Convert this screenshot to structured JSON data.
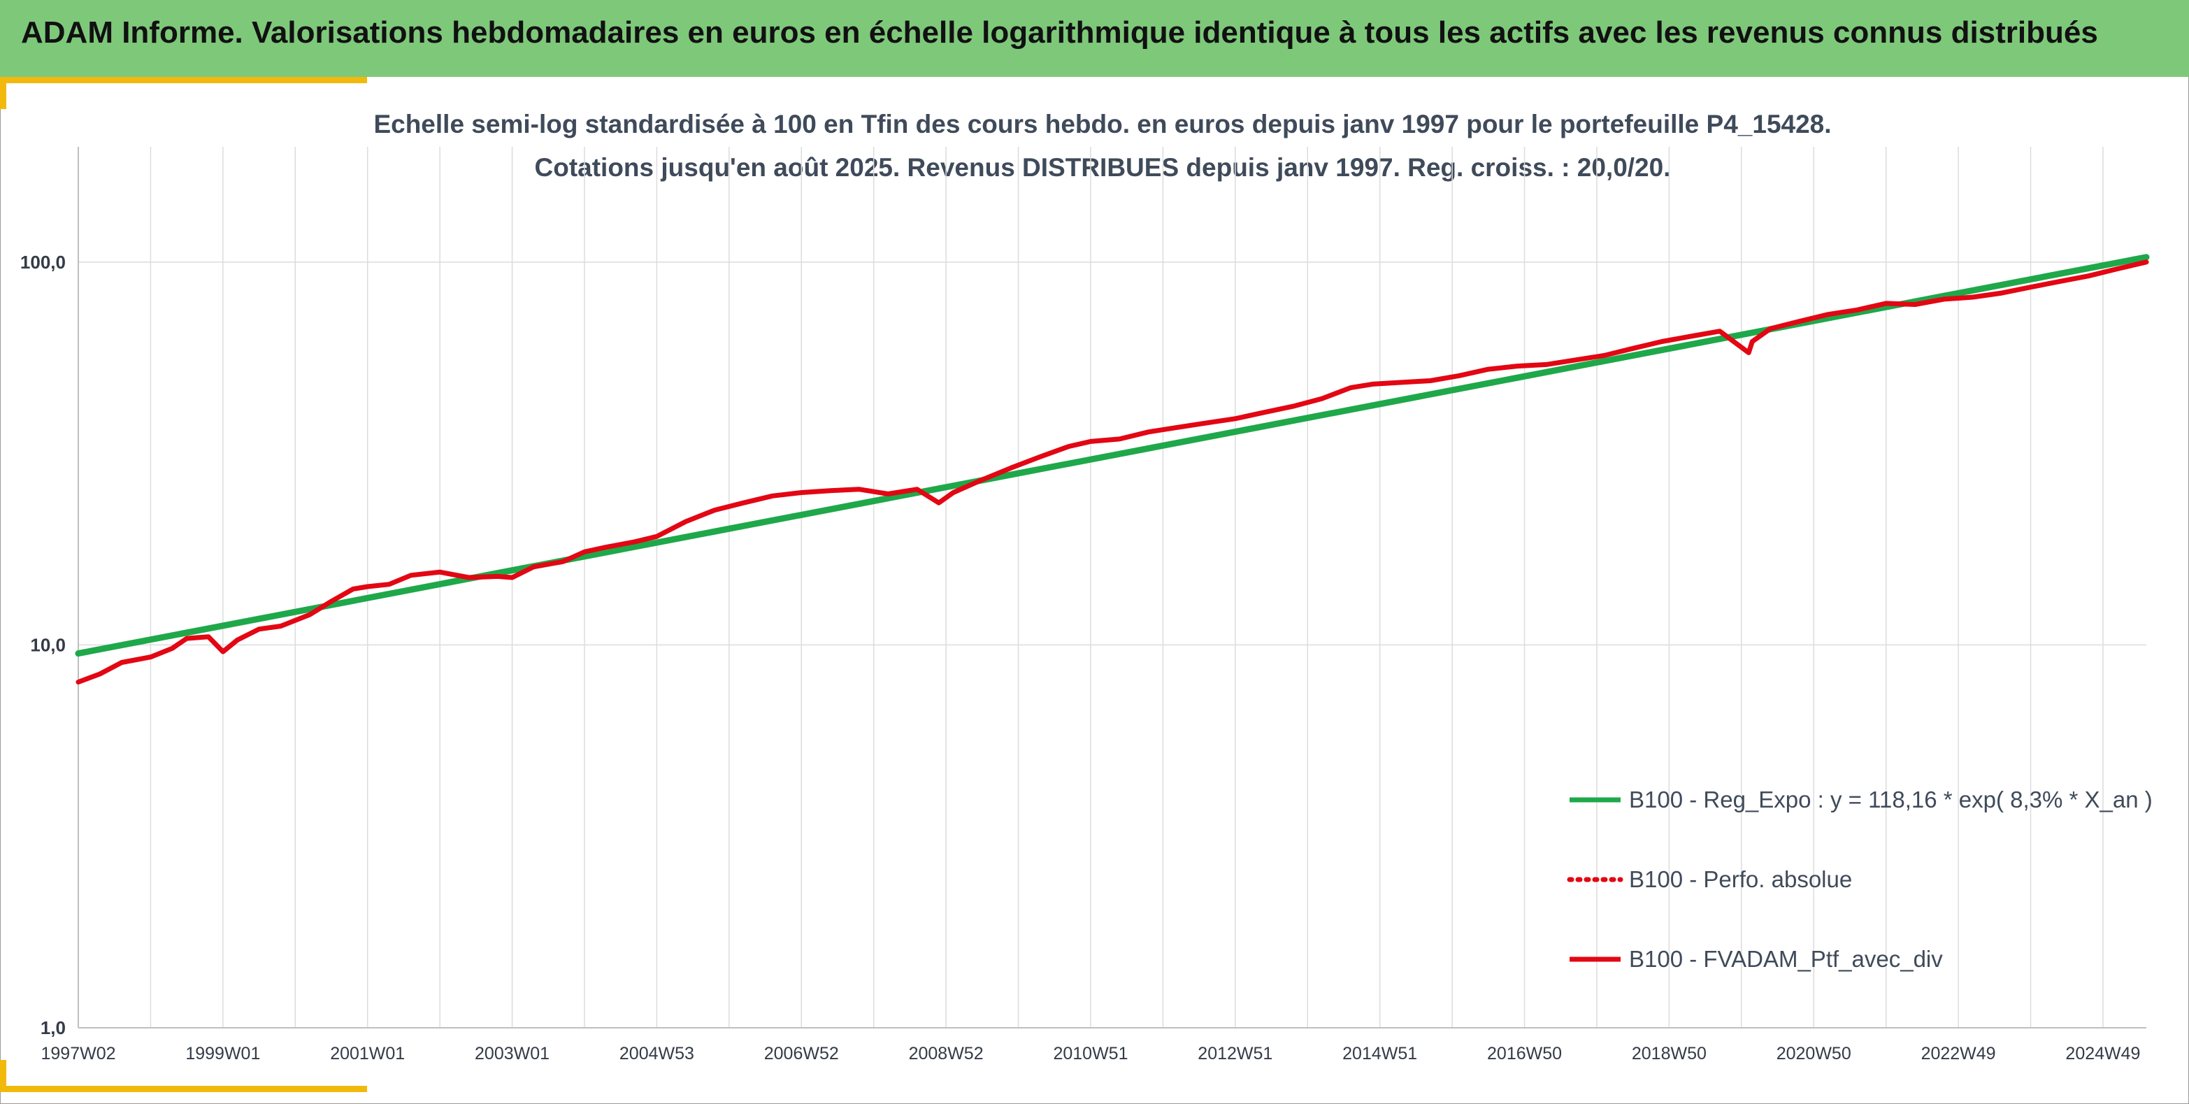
{
  "header": {
    "title": "ADAM Informe. Valorisations hebdomadaires en euros en échelle logarithmique identique à tous les actifs avec les revenus connus distribués",
    "background": "#7ec87a",
    "accent": "#f2b90d"
  },
  "chart_data": {
    "type": "line",
    "title": "Echelle semi-log standardisée à 100 en Tfin des cours hebdo. en euros depuis janv 1997 pour le portefeuille P4_15428.",
    "subtitle": "Cotations jusqu'en août 2025. Revenus DISTRIBUES depuis janv 1997. Reg. croiss. : 20,0/20.",
    "xlabel": "",
    "ylabel": "",
    "y_scale": "log",
    "ylim": [
      1,
      200
    ],
    "xlim": [
      1997.0,
      2025.6
    ],
    "grid": true,
    "legend_position": "right",
    "y_ticks": [
      {
        "value": 1,
        "label": "1,0"
      },
      {
        "value": 10,
        "label": "10,0"
      },
      {
        "value": 100,
        "label": "100,0"
      }
    ],
    "x_ticks": [
      {
        "value": 1997.0,
        "label": "1997W02"
      },
      {
        "value": 1999.0,
        "label": "1999W01"
      },
      {
        "value": 2001.0,
        "label": "2001W01"
      },
      {
        "value": 2003.0,
        "label": "2003W01"
      },
      {
        "value": 2005.0,
        "label": "2004W53"
      },
      {
        "value": 2007.0,
        "label": "2006W52"
      },
      {
        "value": 2009.0,
        "label": "2008W52"
      },
      {
        "value": 2011.0,
        "label": "2010W51"
      },
      {
        "value": 2013.0,
        "label": "2012W51"
      },
      {
        "value": 2015.0,
        "label": "2014W51"
      },
      {
        "value": 2017.0,
        "label": "2016W50"
      },
      {
        "value": 2019.0,
        "label": "2018W50"
      },
      {
        "value": 2021.0,
        "label": "2020W50"
      },
      {
        "value": 2023.0,
        "label": "2022W49"
      },
      {
        "value": 2025.0,
        "label": "2024W49"
      }
    ],
    "series": [
      {
        "name": "B100 - Reg_Expo : y = 118,16 * exp( 8,3% *  X_an )",
        "color": "#1fa84a",
        "style": "solid",
        "x": [
          1997.0,
          2025.6
        ],
        "y": [
          9.5,
          103
        ]
      },
      {
        "name": "B100 - Perfo. absolue",
        "color": "#e30613",
        "style": "dotted",
        "x": [],
        "y": []
      },
      {
        "name": "B100 - FVADAM_Ptf_avec_div",
        "color": "#e30613",
        "style": "solid",
        "x": [
          1997.0,
          1997.3,
          1997.6,
          1998.0,
          1998.3,
          1998.5,
          1998.8,
          1999.0,
          1999.2,
          1999.5,
          1999.8,
          2000.2,
          2000.5,
          2000.8,
          2001.0,
          2001.3,
          2001.6,
          2002.0,
          2002.4,
          2002.8,
          2003.0,
          2003.3,
          2003.7,
          2004.0,
          2004.3,
          2004.7,
          2005.0,
          2005.4,
          2005.8,
          2006.2,
          2006.6,
          2007.0,
          2007.4,
          2007.8,
          2008.2,
          2008.6,
          2008.9,
          2009.1,
          2009.5,
          2009.9,
          2010.3,
          2010.7,
          2011.0,
          2011.4,
          2011.8,
          2012.2,
          2012.6,
          2013.0,
          2013.4,
          2013.8,
          2014.2,
          2014.6,
          2014.9,
          2015.3,
          2015.7,
          2016.1,
          2016.5,
          2016.9,
          2017.3,
          2017.7,
          2018.1,
          2018.5,
          2018.9,
          2019.3,
          2019.7,
          2020.1,
          2020.15,
          2020.4,
          2020.8,
          2021.2,
          2021.6,
          2022.0,
          2022.4,
          2022.8,
          2023.2,
          2023.6,
          2024.0,
          2024.4,
          2024.8,
          2025.2,
          2025.6
        ],
        "y": [
          8.0,
          8.4,
          9.0,
          9.3,
          9.8,
          10.4,
          10.5,
          9.6,
          10.3,
          11.0,
          11.2,
          12.0,
          13.0,
          14.0,
          14.2,
          14.4,
          15.2,
          15.5,
          15.0,
          15.1,
          15.0,
          16.0,
          16.5,
          17.5,
          18.0,
          18.6,
          19.2,
          21.0,
          22.5,
          23.5,
          24.5,
          25.0,
          25.3,
          25.5,
          24.8,
          25.5,
          23.5,
          25.0,
          27.0,
          29.0,
          31.0,
          33.0,
          34.0,
          34.5,
          36.0,
          37.0,
          38.0,
          39.0,
          40.5,
          42.0,
          44.0,
          47.0,
          48.0,
          48.5,
          49.0,
          50.5,
          52.5,
          53.5,
          54.0,
          55.5,
          57.0,
          59.5,
          62.0,
          64.0,
          66.0,
          58.0,
          62.0,
          67.0,
          70.0,
          73.0,
          75.0,
          78.0,
          77.5,
          80.0,
          81.0,
          83.0,
          86.0,
          89.0,
          92.0,
          96.0,
          100.0
        ]
      }
    ]
  }
}
